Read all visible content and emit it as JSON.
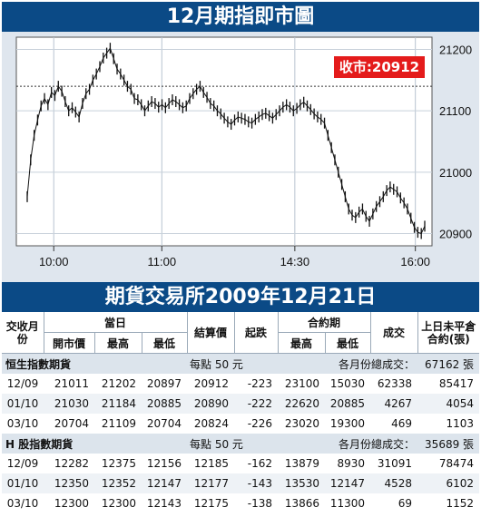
{
  "chart_title": "12月期指即市圖",
  "table_title": "期貨交易所2009年12月21日",
  "chart_data": {
    "type": "line",
    "title": "12月期指即市圖",
    "x_ticks": [
      "10:00",
      "11:00",
      "14:30",
      "16:00"
    ],
    "y_ticks": [
      21200,
      21100,
      21000,
      20900
    ],
    "ylim": [
      20880,
      21220
    ],
    "reference_line": 21140,
    "close_label": "收市:20912",
    "grid": true,
    "series": [
      {
        "values": [
          20960,
          21020,
          21060,
          21085,
          21108,
          21120,
          21110,
          21130,
          21125,
          21140,
          21132,
          21115,
          21100,
          21105,
          21098,
          21090,
          21112,
          21128,
          21135,
          21150,
          21160,
          21172,
          21186,
          21194,
          21202,
          21185,
          21168,
          21160,
          21150,
          21140,
          21135,
          21120,
          21118,
          21110,
          21100,
          21108,
          21115,
          21112,
          21106,
          21110,
          21105,
          21112,
          21118,
          21115,
          21110,
          21105,
          21108,
          21120,
          21128,
          21135,
          21140,
          21130,
          21122,
          21112,
          21108,
          21100,
          21095,
          21088,
          21082,
          21078,
          21085,
          21090,
          21088,
          21086,
          21082,
          21080,
          21086,
          21090,
          21094,
          21096,
          21092,
          21088,
          21094,
          21100,
          21106,
          21110,
          21106,
          21100,
          21104,
          21110,
          21114,
          21108,
          21102,
          21095,
          21090,
          21086,
          21080,
          21060,
          21040,
          21020,
          21000,
          20980,
          20960,
          20940,
          20930,
          20926,
          20935,
          20940,
          20928,
          20920,
          20932,
          20944,
          20952,
          20960,
          20970,
          20976,
          20972,
          20968,
          20958,
          20950,
          20940,
          20925,
          20910,
          20902,
          20900,
          20912
        ]
      }
    ]
  },
  "table": {
    "header1": {
      "contract": "交收月份",
      "day": "當日",
      "settle": "結算價",
      "change": "起跌",
      "period": "合約期",
      "volume": "成交",
      "oi": "上日未平倉合約(張)"
    },
    "header2": {
      "open": "開市價",
      "high": "最高",
      "low": "最低",
      "phigh": "最高",
      "plow": "最低"
    },
    "sections": [
      {
        "name": "恒生指數期貨",
        "unit": "每點 50 元",
        "total_label": "各月份總成交：",
        "total_value": "67162 張",
        "rows": [
          [
            "12/09",
            "21011",
            "21202",
            "20897",
            "20912",
            "-223",
            "23100",
            "15030",
            "62338",
            "85417"
          ],
          [
            "01/10",
            "21030",
            "21184",
            "20885",
            "20890",
            "-222",
            "22620",
            "20885",
            "4267",
            "4054"
          ],
          [
            "03/10",
            "20704",
            "21109",
            "20704",
            "20824",
            "-226",
            "23020",
            "19300",
            "469",
            "1103"
          ]
        ]
      },
      {
        "name": "H 股指數期貨",
        "unit": "每點 50 元",
        "total_label": "各月份總成交：",
        "total_value": "35689 張",
        "rows": [
          [
            "12/09",
            "12282",
            "12375",
            "12156",
            "12185",
            "-162",
            "13879",
            "8930",
            "31091",
            "78474"
          ],
          [
            "01/10",
            "12350",
            "12352",
            "12147",
            "12177",
            "-143",
            "13530",
            "12147",
            "4528",
            "6102"
          ],
          [
            "03/10",
            "12300",
            "12300",
            "12143",
            "12175",
            "-138",
            "13866",
            "11300",
            "69",
            "1152"
          ]
        ]
      }
    ]
  }
}
